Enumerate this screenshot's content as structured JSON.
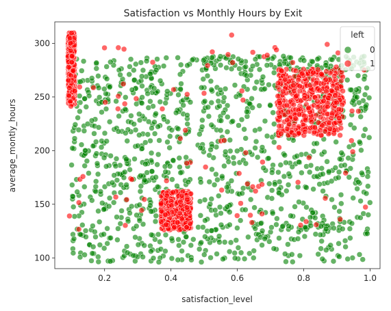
{
  "chart_data": {
    "type": "scatter",
    "title": "Satisfaction vs Monthly Hours by Exit",
    "xlabel": "satisfaction_level",
    "ylabel": "average_montly_hours",
    "xlim": [
      0.05,
      1.03
    ],
    "ylim": [
      90,
      320
    ],
    "xticks": [
      0.2,
      0.4,
      0.6,
      0.8,
      1.0
    ],
    "xtick_labels": [
      "0.2",
      "0.4",
      "0.6",
      "0.8",
      "1.0"
    ],
    "yticks": [
      100,
      150,
      200,
      250,
      300
    ],
    "ytick_labels": [
      "100",
      "150",
      "200",
      "250",
      "300"
    ],
    "grid": false,
    "legend": {
      "title": "left",
      "placement": "top-right"
    },
    "series": [
      {
        "name": "0",
        "color": "#008000",
        "clusters": [
          {
            "x": [
              0.1,
              0.46
            ],
            "y": [
              96,
              287
            ],
            "density": "medium"
          },
          {
            "x": [
              0.48,
              1.0
            ],
            "y": [
              126,
              278
            ],
            "density": "dense"
          },
          {
            "x": [
              0.46,
              1.0
            ],
            "y": [
              96,
              130
            ],
            "density": "sparse"
          },
          {
            "x": [
              0.46,
              1.0
            ],
            "y": [
              275,
              288
            ],
            "density": "sparse"
          }
        ]
      },
      {
        "name": "1",
        "color": "#ff0000",
        "clusters": [
          {
            "x": [
              0.09,
              0.11
            ],
            "y": [
              243,
              310
            ],
            "density": "dense"
          },
          {
            "x": [
              0.37,
              0.46
            ],
            "y": [
              126,
              162
            ],
            "density": "dense"
          },
          {
            "x": [
              0.72,
              0.92
            ],
            "y": [
              214,
              276
            ],
            "density": "dense"
          },
          {
            "x": [
              0.09,
              1.0
            ],
            "y": [
              126,
              310
            ],
            "density": "scattered"
          }
        ]
      }
    ]
  }
}
